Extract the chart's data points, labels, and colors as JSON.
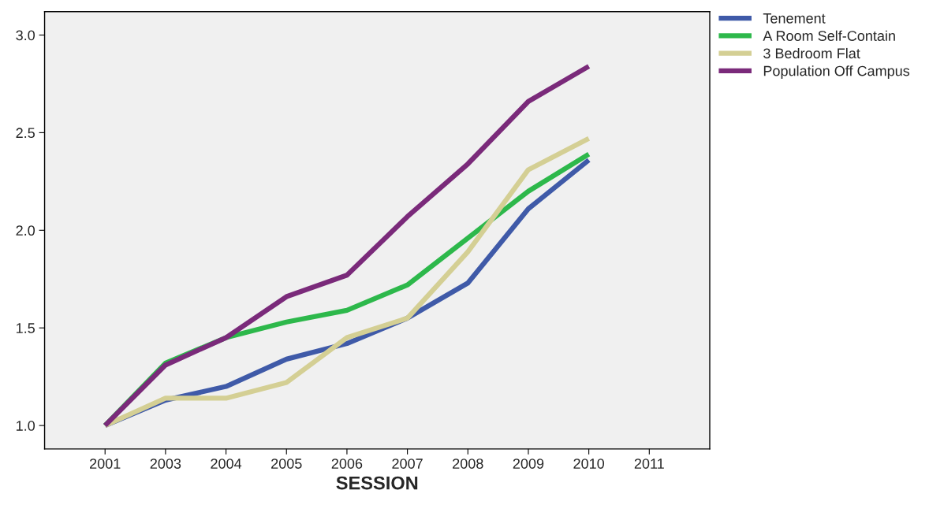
{
  "chart_data": {
    "type": "line",
    "xlabel": "SESSION",
    "categories": [
      "2001",
      "2003",
      "2004",
      "2005",
      "2006",
      "2007",
      "2008",
      "2009",
      "2010",
      "2011"
    ],
    "series": [
      {
        "name": "Tenement",
        "color": "#3f5aa8",
        "values": [
          1.0,
          1.13,
          1.2,
          1.34,
          1.42,
          1.55,
          1.73,
          2.11,
          2.36,
          null
        ]
      },
      {
        "name": "A Room Self-Contain",
        "color": "#2db84b",
        "values": [
          1.0,
          1.32,
          1.45,
          1.53,
          1.59,
          1.72,
          1.96,
          2.2,
          2.39,
          null
        ]
      },
      {
        "name": "3 Bedroom Flat",
        "color": "#d4cf94",
        "values": [
          1.0,
          1.14,
          1.14,
          1.22,
          1.45,
          1.55,
          1.89,
          2.31,
          2.47,
          null
        ]
      },
      {
        "name": "Population Off Campus",
        "color": "#7a2a7a",
        "values": [
          1.0,
          1.31,
          1.45,
          1.66,
          1.77,
          2.07,
          2.34,
          2.66,
          2.84,
          null
        ]
      }
    ],
    "ylim": [
      0.88,
      3.12
    ],
    "yticks": [
      {
        "value": 1.0,
        "label": "1.0"
      },
      {
        "value": 1.5,
        "label": "1.5"
      },
      {
        "value": 2.0,
        "label": "2.0"
      },
      {
        "value": 2.5,
        "label": "2.5"
      },
      {
        "value": 3.0,
        "label": "3.0"
      }
    ],
    "grid": false,
    "legend": "top right",
    "marker": "none",
    "line_style": "solid"
  }
}
